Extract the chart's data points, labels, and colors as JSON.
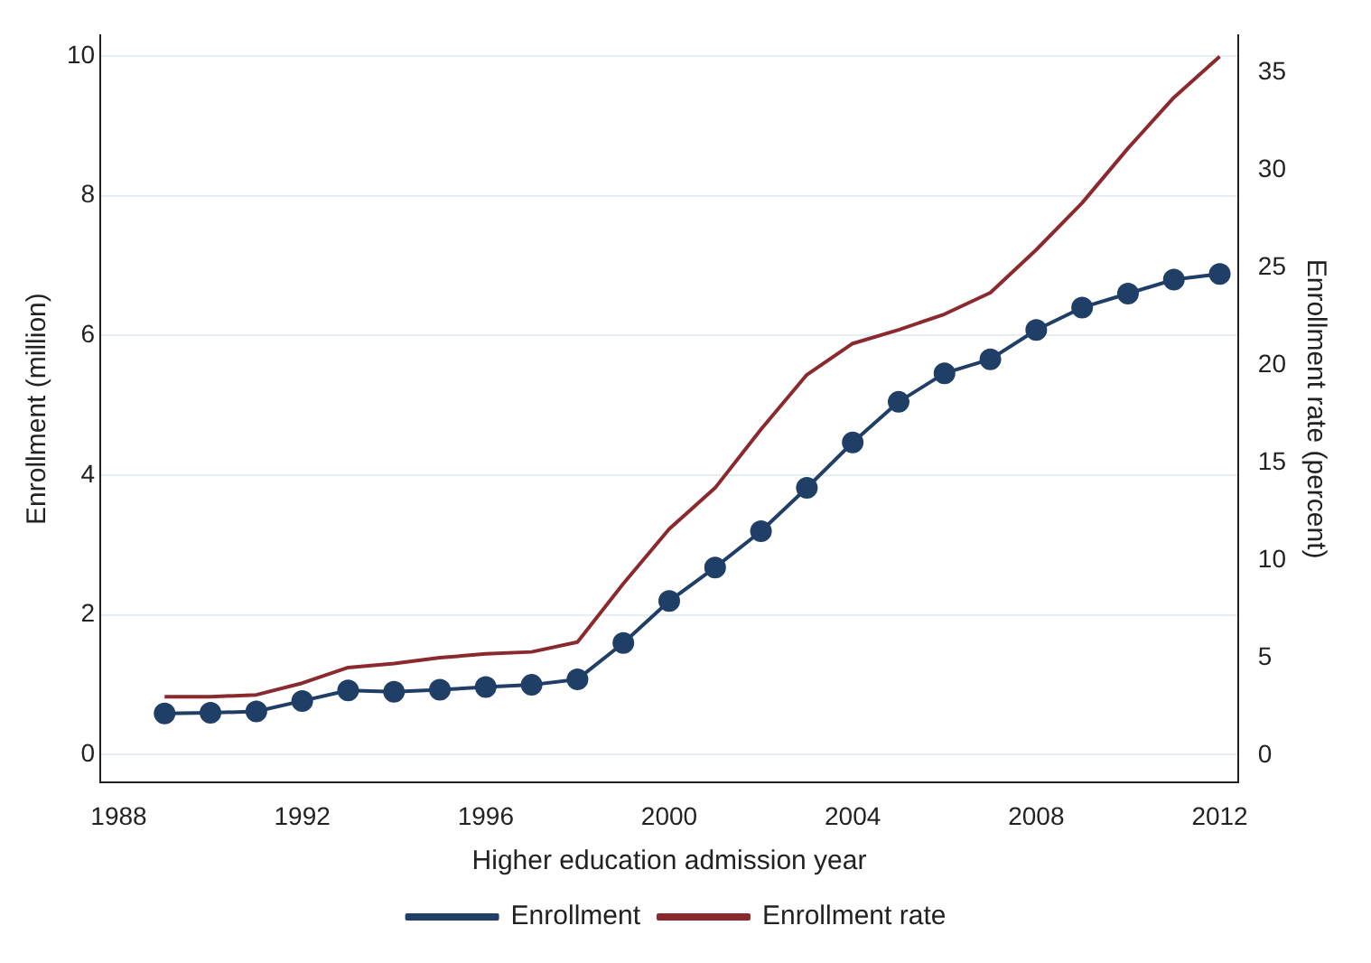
{
  "chart_data": {
    "type": "line",
    "xlabel": "Higher education admission year",
    "ylabel": "Enrollment (million)",
    "y2label": "Enrollment rate (percent)",
    "x": [
      1989,
      1990,
      1991,
      1992,
      1993,
      1994,
      1995,
      1996,
      1997,
      1998,
      1999,
      2000,
      2001,
      2002,
      2003,
      2004,
      2005,
      2006,
      2007,
      2008,
      2009,
      2010,
      2011,
      2012
    ],
    "series": [
      {
        "name": "Enrollment",
        "color": "#1f3f66",
        "marker": "circle",
        "values": [
          0.59,
          0.6,
          0.62,
          0.77,
          0.92,
          0.9,
          0.93,
          0.97,
          1.0,
          1.08,
          1.6,
          2.2,
          2.68,
          3.2,
          3.82,
          4.47,
          5.05,
          5.46,
          5.66,
          6.08,
          6.4,
          6.6,
          6.8,
          6.88
        ]
      },
      {
        "name": "Enrollment rate",
        "color": "#8b2a2e",
        "marker": "none",
        "axis": "y2",
        "values": [
          3.0,
          3.0,
          3.1,
          3.7,
          4.5,
          4.7,
          5.0,
          5.2,
          5.3,
          5.8,
          8.8,
          11.6,
          13.7,
          16.7,
          19.5,
          21.1,
          21.8,
          22.6,
          23.7,
          25.9,
          28.3,
          31.1,
          33.7,
          35.8
        ]
      }
    ],
    "xlim": [
      1987.6,
      2012.4
    ],
    "xticks": [
      1988,
      1992,
      1996,
      2000,
      2004,
      2008,
      2012
    ],
    "ylim": [
      -0.4,
      10.3
    ],
    "yticks": [
      0,
      2,
      4,
      6,
      8,
      10
    ],
    "y2lim": [
      -1.4,
      36.9
    ],
    "y2ticks": [
      0,
      5,
      10,
      15,
      20,
      25,
      30,
      35
    ],
    "grid": "y",
    "legend": "bottom",
    "line_style": "solid"
  }
}
